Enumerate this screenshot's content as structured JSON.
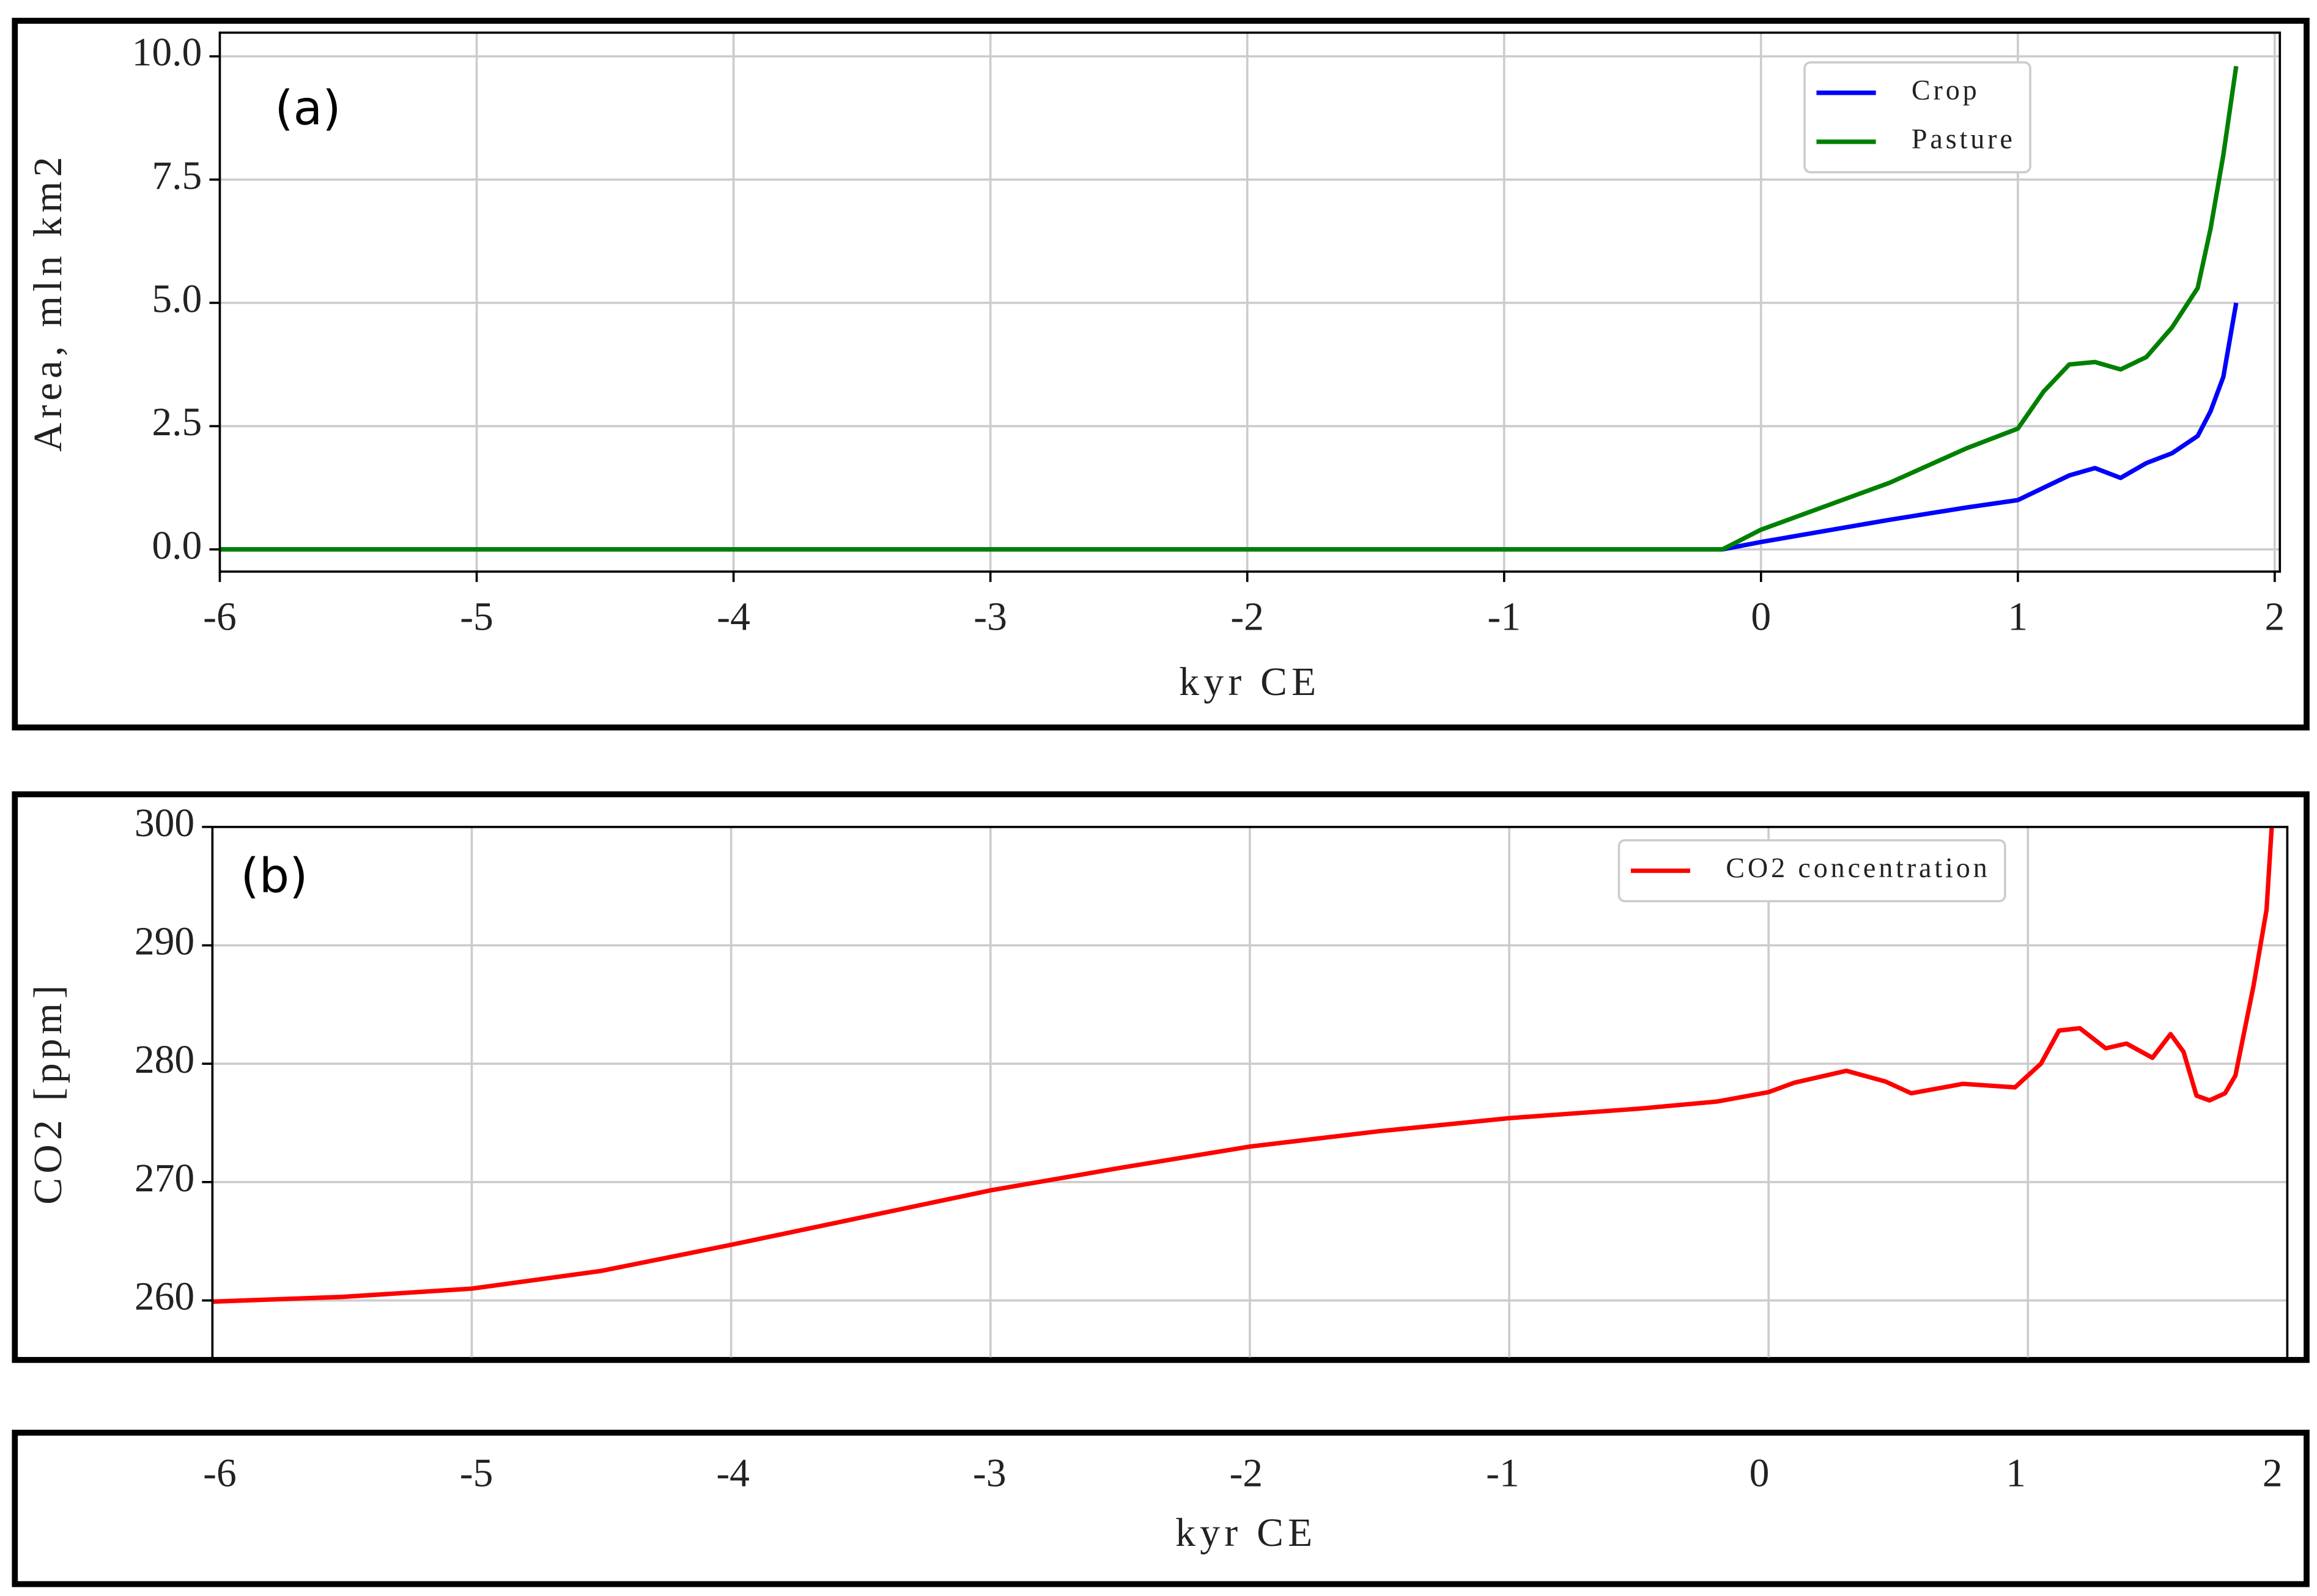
{
  "chart_data": [
    {
      "type": "line",
      "panel_label": "(a)",
      "xlabel": "kyr CE",
      "ylabel": "Area, mln km2",
      "x": [
        -6,
        -5,
        -4,
        -3,
        -2,
        -1,
        -0.15,
        0,
        0.5,
        0.8,
        1.0,
        1.1,
        1.2,
        1.3,
        1.4,
        1.5,
        1.6,
        1.7,
        1.75,
        1.8,
        1.85
      ],
      "series": [
        {
          "name": "Crop",
          "color": "#0000ff",
          "values": [
            0,
            0,
            0,
            0,
            0,
            0,
            0,
            0.15,
            0.6,
            0.85,
            1.0,
            1.25,
            1.5,
            1.65,
            1.45,
            1.75,
            1.95,
            2.3,
            2.8,
            3.5,
            5.0
          ]
        },
        {
          "name": "Pasture",
          "color": "#008000",
          "values": [
            0,
            0,
            0,
            0,
            0,
            0,
            0,
            0.4,
            1.35,
            2.05,
            2.45,
            3.2,
            3.75,
            3.8,
            3.65,
            3.9,
            4.5,
            5.3,
            6.5,
            8.0,
            9.8
          ]
        }
      ],
      "xlim": [
        -6,
        2.02
      ],
      "xticks": [
        -6,
        -5,
        -4,
        -3,
        -2,
        -1,
        0,
        1,
        2
      ],
      "ylim": [
        -0.45,
        10.48
      ],
      "yticks": [
        {
          "value": 0,
          "label": "0.0"
        },
        2.5,
        {
          "value": 5,
          "label": "5.0"
        },
        7.5,
        {
          "value": 10,
          "label": "10.0"
        }
      ],
      "grid": true,
      "legend": "upper right"
    },
    {
      "type": "line",
      "panel_label": "(b)",
      "ylabel": "CO2 [ppm]",
      "x": [
        -6,
        -5.5,
        -5,
        -4.5,
        -4,
        -3.5,
        -3,
        -2.5,
        -2,
        -1.5,
        -1,
        -0.5,
        -0.2,
        0,
        0.1,
        0.3,
        0.45,
        0.55,
        0.75,
        0.95,
        1.05,
        1.12,
        1.2,
        1.3,
        1.38,
        1.48,
        1.55,
        1.6,
        1.65,
        1.7,
        1.76,
        1.8,
        1.87,
        1.92,
        1.94
      ],
      "series": [
        {
          "name": "CO2 concentration",
          "color": "#ff0000",
          "values": [
            259.9,
            260.3,
            261,
            262.5,
            264.7,
            267,
            269.3,
            271.2,
            273,
            274.3,
            275.4,
            276.2,
            276.8,
            277.6,
            278.4,
            279.4,
            278.5,
            277.5,
            278.3,
            278,
            280,
            282.8,
            283,
            281.3,
            281.7,
            280.5,
            282.5,
            281,
            277.3,
            276.9,
            277.5,
            279,
            286.6,
            293,
            300
          ]
        }
      ],
      "xlim": [
        -6,
        2
      ],
      "xticks": [
        -6,
        -5,
        -4,
        -3,
        -2,
        -1,
        0,
        1,
        2
      ],
      "ylim": [
        255.1,
        300
      ],
      "yticks": [
        260,
        270,
        280,
        290,
        300
      ],
      "grid": true,
      "legend": "upper right"
    },
    {
      "type": "axis",
      "xlabel": "kyr CE",
      "xlim": [
        -6,
        2
      ],
      "xticks": [
        -6,
        -5,
        -4,
        -3,
        -2,
        -1,
        0,
        1,
        2
      ]
    }
  ]
}
